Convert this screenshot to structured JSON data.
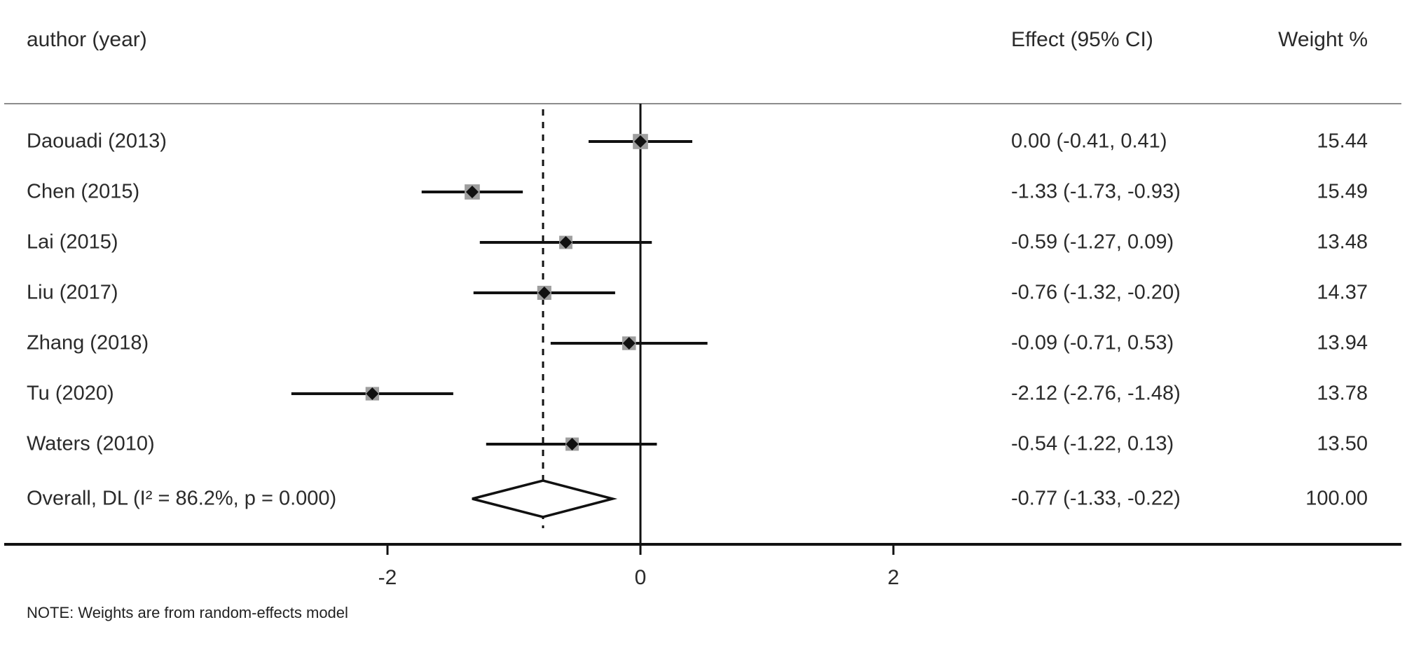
{
  "headers": {
    "author": "author (year)",
    "effect": "Effect (95% CI)",
    "weight": "Weight %"
  },
  "note": "NOTE: Weights are from random-effects model",
  "chart_data": {
    "type": "forest",
    "title": "",
    "xlabel": "",
    "ylabel": "",
    "axis": {
      "ticks": [
        -2,
        0,
        2
      ],
      "xlim": [
        -4.8,
        6.0
      ],
      "zero_line": 0,
      "grid": false
    },
    "studies": [
      {
        "label": "Daouadi (2013)",
        "effect": 0.0,
        "ci_low": -0.41,
        "ci_high": 0.41,
        "effect_text": "0.00 (-0.41, 0.41)",
        "weight": 15.44,
        "weight_text": "15.44"
      },
      {
        "label": "Chen (2015)",
        "effect": -1.33,
        "ci_low": -1.73,
        "ci_high": -0.93,
        "effect_text": "-1.33 (-1.73, -0.93)",
        "weight": 15.49,
        "weight_text": "15.49"
      },
      {
        "label": "Lai (2015)",
        "effect": -0.59,
        "ci_low": -1.27,
        "ci_high": 0.09,
        "effect_text": "-0.59 (-1.27, 0.09)",
        "weight": 13.48,
        "weight_text": "13.48"
      },
      {
        "label": "Liu (2017)",
        "effect": -0.76,
        "ci_low": -1.32,
        "ci_high": -0.2,
        "effect_text": "-0.76 (-1.32, -0.20)",
        "weight": 14.37,
        "weight_text": "14.37"
      },
      {
        "label": "Zhang (2018)",
        "effect": -0.09,
        "ci_low": -0.71,
        "ci_high": 0.53,
        "effect_text": "-0.09 (-0.71, 0.53)",
        "weight": 13.94,
        "weight_text": "13.94"
      },
      {
        "label": "Tu (2020)",
        "effect": -2.12,
        "ci_low": -2.76,
        "ci_high": -1.48,
        "effect_text": "-2.12 (-2.76, -1.48)",
        "weight": 13.78,
        "weight_text": "13.78"
      },
      {
        "label": "Waters (2010)",
        "effect": -0.54,
        "ci_low": -1.22,
        "ci_high": 0.13,
        "effect_text": "-0.54 (-1.22, 0.13)",
        "weight": 13.5,
        "weight_text": "13.50"
      }
    ],
    "overall": {
      "label": "Overall, DL (I² = 86.2%, p = 0.000)",
      "effect": -0.77,
      "ci_low": -1.33,
      "ci_high": -0.22,
      "effect_text": "-0.77 (-1.33, -0.22)",
      "weight": 100.0,
      "weight_text": "100.00",
      "heterogeneity_I2": "86.2%",
      "p_value": "0.000"
    },
    "colors": {
      "line": "#111111",
      "marker_square": "#9e9e9e",
      "marker_diamond": "#111111",
      "overall_diamond_fill": "#ffffff",
      "separator": "#8c8c8c",
      "text": "#2a2a2a"
    }
  }
}
